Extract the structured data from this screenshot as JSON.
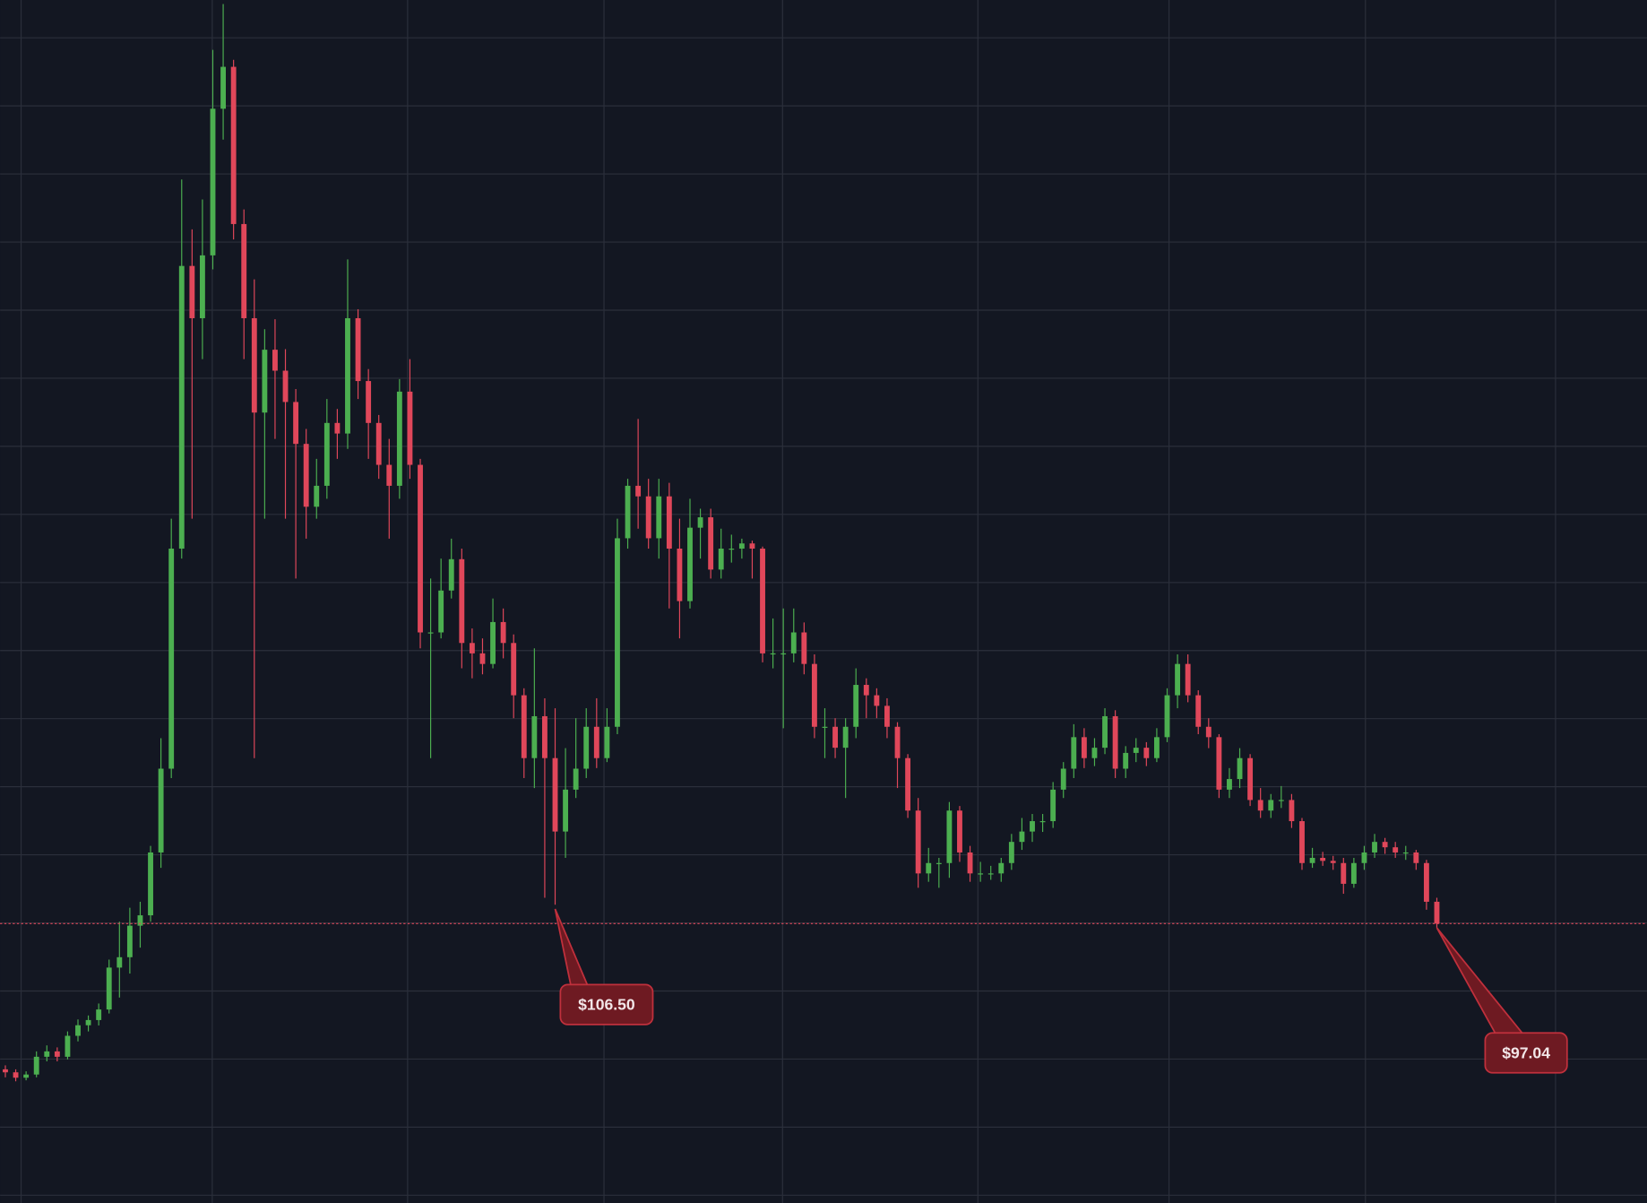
{
  "chart_data": {
    "type": "candlestick",
    "ylim": [
      -43,
      560
    ],
    "up_color": "#4caf50",
    "down_color": "#e0475a",
    "grid": true,
    "ohlc": [
      [
        24,
        26,
        20,
        22.5
      ],
      [
        22.5,
        24,
        18,
        19.8
      ],
      [
        19.8,
        23,
        18.5,
        21.4
      ],
      [
        21.4,
        33,
        20,
        30.3
      ],
      [
        30.3,
        36,
        28,
        33
      ],
      [
        33,
        35,
        28,
        30.3
      ],
      [
        30.3,
        43,
        29,
        40.8
      ],
      [
        40.8,
        49,
        38,
        46.1
      ],
      [
        46.1,
        51,
        43,
        48.7
      ],
      [
        48.7,
        57,
        46,
        54
      ],
      [
        54,
        79,
        52,
        75
      ],
      [
        75,
        98,
        60,
        80.2
      ],
      [
        80.2,
        105,
        72,
        96
      ],
      [
        96,
        108,
        85,
        101.2
      ],
      [
        101.2,
        136,
        98,
        132.7
      ],
      [
        132.7,
        190,
        125,
        174.7
      ],
      [
        174.7,
        300,
        170,
        285
      ],
      [
        285,
        470,
        280,
        426.7
      ],
      [
        426.7,
        445,
        300,
        400.5
      ],
      [
        400.5,
        460,
        380,
        432
      ],
      [
        432,
        535,
        425,
        505.5
      ],
      [
        505.5,
        558,
        490,
        526.5
      ],
      [
        526.5,
        530,
        440,
        447.7
      ],
      [
        447.7,
        455,
        380,
        400.5
      ],
      [
        400.5,
        420,
        180,
        353.2
      ],
      [
        353.2,
        395,
        300,
        384.7
      ],
      [
        384.7,
        400,
        340,
        374.2
      ],
      [
        374.2,
        385,
        300,
        358.5
      ],
      [
        358.5,
        365,
        270,
        337.5
      ],
      [
        337.5,
        345,
        290,
        306
      ],
      [
        306,
        330,
        300,
        316.5
      ],
      [
        316.5,
        360,
        310,
        348
      ],
      [
        348,
        355,
        330,
        342.7
      ],
      [
        342.7,
        430,
        335,
        400.5
      ],
      [
        400.5,
        405,
        360,
        369
      ],
      [
        369,
        375,
        330,
        348
      ],
      [
        348,
        352,
        320,
        327
      ],
      [
        327,
        340,
        290,
        316.5
      ],
      [
        316.5,
        370,
        310,
        363.7
      ],
      [
        363.7,
        380,
        320,
        327
      ],
      [
        327,
        330,
        235,
        243
      ],
      [
        243,
        270,
        180,
        243
      ],
      [
        243,
        280,
        240,
        264
      ],
      [
        264,
        290,
        260,
        279.7
      ],
      [
        279.7,
        285,
        225,
        237.7
      ],
      [
        237.7,
        245,
        220,
        232.5
      ],
      [
        232.5,
        240,
        222,
        227.2
      ],
      [
        227.2,
        260,
        225,
        248.2
      ],
      [
        248.2,
        255,
        230,
        237.7
      ],
      [
        237.7,
        242,
        200,
        211.5
      ],
      [
        211.5,
        215,
        170,
        180
      ],
      [
        180,
        235,
        165,
        201
      ],
      [
        201,
        210,
        110,
        180
      ],
      [
        180,
        205,
        106.5,
        143.2
      ],
      [
        143.2,
        185,
        130,
        164.2
      ],
      [
        164.2,
        200,
        160,
        174.7
      ],
      [
        174.7,
        205,
        170,
        195.7
      ],
      [
        195.7,
        210,
        175,
        180
      ],
      [
        180,
        205,
        178,
        195.7
      ],
      [
        195.7,
        300,
        192,
        290.2
      ],
      [
        290.2,
        320,
        285,
        316.5
      ],
      [
        316.5,
        350,
        295,
        311.2
      ],
      [
        311.2,
        320,
        285,
        290.2
      ],
      [
        290.2,
        320,
        280,
        311.2
      ],
      [
        311.2,
        318,
        255,
        285
      ],
      [
        285,
        300,
        240,
        258.7
      ],
      [
        258.7,
        310,
        255,
        295.5
      ],
      [
        295.5,
        305,
        280,
        300.7
      ],
      [
        300.7,
        305,
        270,
        274.5
      ],
      [
        274.5,
        295,
        270,
        285
      ],
      [
        285,
        292,
        278,
        285
      ],
      [
        285,
        290,
        280,
        287.6
      ],
      [
        287.6,
        289,
        270,
        285
      ],
      [
        285,
        286,
        228,
        232.5
      ],
      [
        232.5,
        250,
        225,
        232.5
      ],
      [
        232.5,
        255,
        195,
        232.5
      ],
      [
        232.5,
        255,
        228,
        243
      ],
      [
        243,
        248,
        222,
        227.2
      ],
      [
        227.2,
        232,
        190,
        195.7
      ],
      [
        195.7,
        205,
        180,
        195.7
      ],
      [
        195.7,
        200,
        180,
        185.2
      ],
      [
        185.2,
        200,
        160,
        195.7
      ],
      [
        195.7,
        225,
        190,
        216.7
      ],
      [
        216.7,
        220,
        200,
        211.5
      ],
      [
        211.5,
        215,
        200,
        206.2
      ],
      [
        206.2,
        210,
        190,
        195.7
      ],
      [
        195.7,
        198,
        165,
        180
      ],
      [
        180,
        182,
        150,
        153.7
      ],
      [
        153.7,
        160,
        115,
        122.2
      ],
      [
        122.2,
        135,
        118,
        127.4
      ],
      [
        127.4,
        130,
        115,
        127.4
      ],
      [
        127.4,
        158,
        120,
        153.7
      ],
      [
        153.7,
        156,
        128,
        132.7
      ],
      [
        132.7,
        136,
        118,
        122.2
      ],
      [
        122.2,
        128,
        118,
        122.2
      ],
      [
        122.2,
        126,
        119,
        122.2
      ],
      [
        122.2,
        130,
        118,
        127.4
      ],
      [
        127.4,
        142,
        124,
        138
      ],
      [
        138,
        150,
        134,
        143.2
      ],
      [
        143.2,
        152,
        138,
        148.4
      ],
      [
        148.4,
        152,
        143,
        148.4
      ],
      [
        148.4,
        168,
        145,
        164.2
      ],
      [
        164.2,
        178,
        160,
        174.7
      ],
      [
        174.7,
        197,
        170,
        190.5
      ],
      [
        190.5,
        195,
        175,
        180
      ],
      [
        180,
        190,
        176,
        185.2
      ],
      [
        185.2,
        205,
        182,
        201
      ],
      [
        201,
        204,
        170,
        174.7
      ],
      [
        174.7,
        186,
        170,
        182.6
      ],
      [
        182.6,
        190,
        178,
        185.2
      ],
      [
        185.2,
        188,
        176,
        180
      ],
      [
        180,
        195,
        178,
        190.5
      ],
      [
        190.5,
        215,
        188,
        211.5
      ],
      [
        211.5,
        232,
        205,
        227.2
      ],
      [
        227.2,
        232,
        208,
        211.5
      ],
      [
        211.5,
        214,
        192,
        195.7
      ],
      [
        195.7,
        200,
        185,
        190.5
      ],
      [
        190.5,
        192,
        160,
        164.2
      ],
      [
        164.2,
        175,
        160,
        169.5
      ],
      [
        169.5,
        185,
        165,
        180
      ],
      [
        180,
        182,
        156,
        159
      ],
      [
        159,
        165,
        150,
        153.7
      ],
      [
        153.7,
        162,
        150,
        159
      ],
      [
        159,
        166,
        155,
        159
      ],
      [
        159,
        162,
        145,
        148.4
      ],
      [
        148.4,
        150,
        124,
        127.4
      ],
      [
        127.4,
        135,
        125,
        130
      ],
      [
        130,
        133,
        126,
        128.5
      ],
      [
        128.5,
        131,
        124,
        127.4
      ],
      [
        127.4,
        130,
        112,
        117
      ],
      [
        117,
        130,
        115,
        127.4
      ],
      [
        127.4,
        136,
        124,
        132.7
      ],
      [
        132.7,
        142,
        130,
        138
      ],
      [
        138,
        140,
        132,
        135.3
      ],
      [
        135.3,
        138,
        130,
        132.7
      ],
      [
        132.7,
        136,
        129,
        132.7
      ],
      [
        132.7,
        134,
        124,
        127.4
      ],
      [
        127.4,
        129,
        104,
        108
      ],
      [
        108,
        110,
        95,
        97.04
      ]
    ],
    "annotations": [
      {
        "text": "$106.50",
        "value": 106.5
      },
      {
        "text": "$97.04",
        "value": 97.04
      }
    ]
  }
}
